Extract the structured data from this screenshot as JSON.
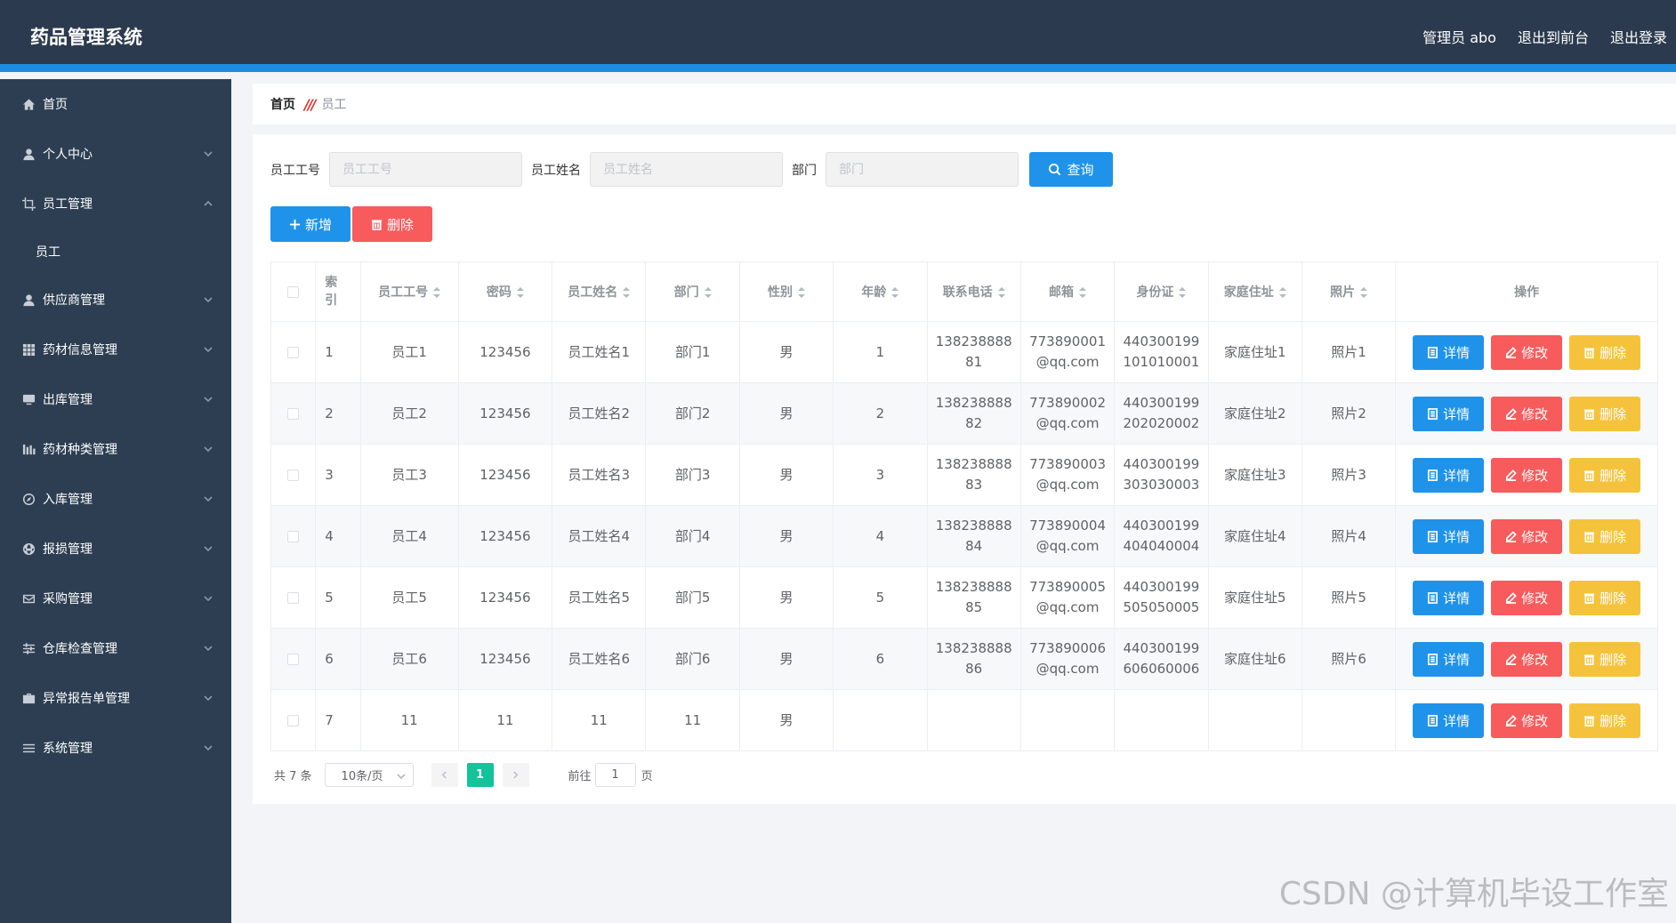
{
  "header": {
    "title": "药品管理系统",
    "admin_label": "管理员 abo",
    "front_label": "退出到前台",
    "logout_label": "退出登录"
  },
  "sidebar": {
    "items": [
      {
        "label": "首页",
        "icon": "home-icon"
      },
      {
        "label": "个人中心",
        "icon": "user-icon"
      },
      {
        "label": "员工管理",
        "icon": "crop-icon"
      },
      {
        "label": "员工",
        "icon": ""
      },
      {
        "label": "供应商管理",
        "icon": "user-icon"
      },
      {
        "label": "药材信息管理",
        "icon": "grid-icon"
      },
      {
        "label": "出库管理",
        "icon": "monitor-icon"
      },
      {
        "label": "药材种类管理",
        "icon": "chart-icon"
      },
      {
        "label": "入库管理",
        "icon": "compass-icon"
      },
      {
        "label": "报损管理",
        "icon": "globe-icon"
      },
      {
        "label": "采购管理",
        "icon": "mail-icon"
      },
      {
        "label": "仓库检查管理",
        "icon": "sliders-icon"
      },
      {
        "label": "异常报告单管理",
        "icon": "briefcase-icon"
      },
      {
        "label": "系统管理",
        "icon": "menu-icon"
      }
    ]
  },
  "breadcrumb": {
    "home": "首页",
    "separator": "///",
    "current": "员工"
  },
  "search": {
    "field1_label": "员工工号",
    "field1_placeholder": "员工工号",
    "field2_label": "员工姓名",
    "field2_placeholder": "员工姓名",
    "field3_label": "部门",
    "field3_placeholder": "部门",
    "query_label": "查询"
  },
  "actions": {
    "add_label": "新增",
    "delete_label": "删除"
  },
  "table": {
    "headers": {
      "index": "索引",
      "empno": "员工工号",
      "password": "密码",
      "name": "员工姓名",
      "dept": "部门",
      "gender": "性别",
      "age": "年龄",
      "phone": "联系电话",
      "email": "邮箱",
      "idcard": "身份证",
      "address": "家庭住址",
      "photo": "照片",
      "ops": "操作"
    },
    "op_labels": {
      "detail": "详情",
      "edit": "修改",
      "delete": "删除"
    },
    "rows": [
      {
        "index": "1",
        "empno": "员工1",
        "password": "123456",
        "name": "员工姓名1",
        "dept": "部门1",
        "gender": "男",
        "age": "1",
        "phone_a": "138238888",
        "phone_b": "81",
        "email_a": "773890001",
        "email_b": "@qq.com",
        "id_a": "440300199",
        "id_b": "101010001",
        "address": "家庭住址1",
        "photo": "照片1"
      },
      {
        "index": "2",
        "empno": "员工2",
        "password": "123456",
        "name": "员工姓名2",
        "dept": "部门2",
        "gender": "男",
        "age": "2",
        "phone_a": "138238888",
        "phone_b": "82",
        "email_a": "773890002",
        "email_b": "@qq.com",
        "id_a": "440300199",
        "id_b": "202020002",
        "address": "家庭住址2",
        "photo": "照片2"
      },
      {
        "index": "3",
        "empno": "员工3",
        "password": "123456",
        "name": "员工姓名3",
        "dept": "部门3",
        "gender": "男",
        "age": "3",
        "phone_a": "138238888",
        "phone_b": "83",
        "email_a": "773890003",
        "email_b": "@qq.com",
        "id_a": "440300199",
        "id_b": "303030003",
        "address": "家庭住址3",
        "photo": "照片3"
      },
      {
        "index": "4",
        "empno": "员工4",
        "password": "123456",
        "name": "员工姓名4",
        "dept": "部门4",
        "gender": "男",
        "age": "4",
        "phone_a": "138238888",
        "phone_b": "84",
        "email_a": "773890004",
        "email_b": "@qq.com",
        "id_a": "440300199",
        "id_b": "404040004",
        "address": "家庭住址4",
        "photo": "照片4"
      },
      {
        "index": "5",
        "empno": "员工5",
        "password": "123456",
        "name": "员工姓名5",
        "dept": "部门5",
        "gender": "男",
        "age": "5",
        "phone_a": "138238888",
        "phone_b": "85",
        "email_a": "773890005",
        "email_b": "@qq.com",
        "id_a": "440300199",
        "id_b": "505050005",
        "address": "家庭住址5",
        "photo": "照片5"
      },
      {
        "index": "6",
        "empno": "员工6",
        "password": "123456",
        "name": "员工姓名6",
        "dept": "部门6",
        "gender": "男",
        "age": "6",
        "phone_a": "138238888",
        "phone_b": "86",
        "email_a": "773890006",
        "email_b": "@qq.com",
        "id_a": "440300199",
        "id_b": "606060006",
        "address": "家庭住址6",
        "photo": "照片6"
      },
      {
        "index": "7",
        "empno": "11",
        "password": "11",
        "name": "11",
        "dept": "11",
        "gender": "男",
        "age": "",
        "phone_a": "",
        "phone_b": "",
        "email_a": "",
        "email_b": "",
        "id_a": "",
        "id_b": "",
        "address": "",
        "photo": ""
      }
    ]
  },
  "pagination": {
    "total": "共 7 条",
    "page_size": "10条/页",
    "current_page": "1",
    "goto_label": "前往",
    "goto_value": "1",
    "page_suffix": "页"
  },
  "watermark": "CSDN @计算机毕设工作室",
  "colors": {
    "header_bg": "#2b3a4e",
    "accent_bar": "#1e8ddf",
    "sidebar_bg": "#2d3e52",
    "primary": "#1f93ea",
    "danger": "#f75b5b",
    "warning": "#f5c33b",
    "page_active": "#13c49a"
  }
}
